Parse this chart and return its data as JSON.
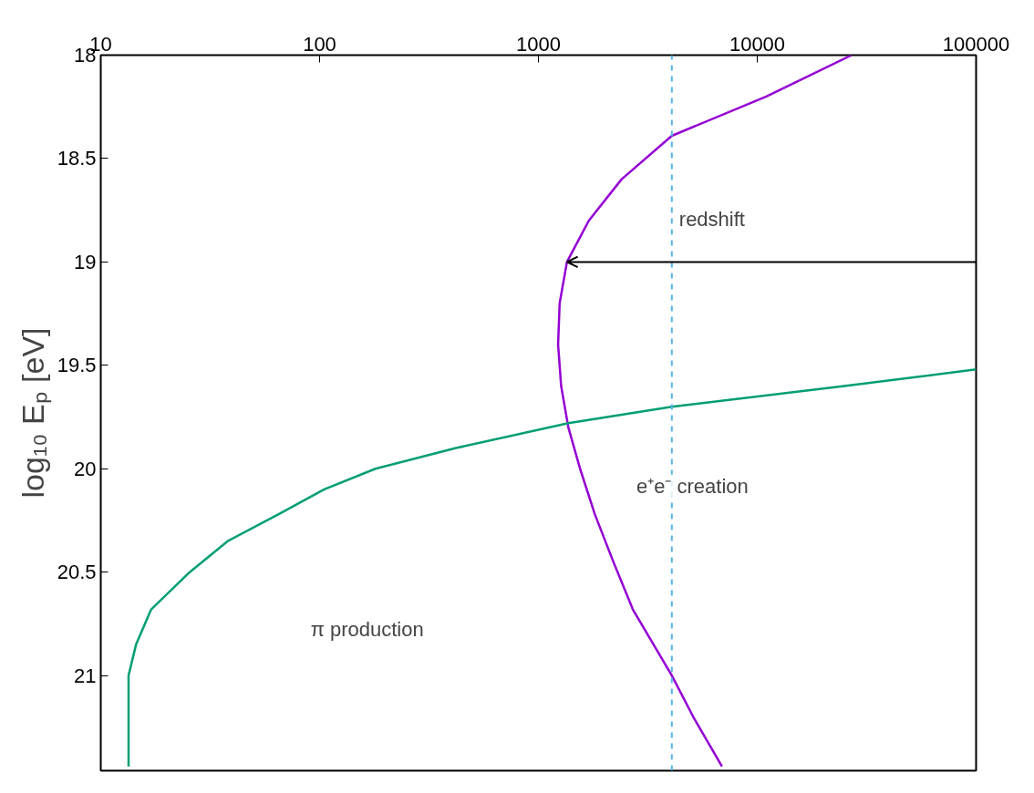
{
  "chart_data": {
    "type": "line",
    "ylabel": "log₁₀ Eₚ [eV]",
    "ylim": [
      21.46,
      18
    ],
    "yticks": [
      18,
      18.5,
      19,
      19.5,
      20,
      20.5,
      21
    ],
    "xlim": [
      10,
      100000
    ],
    "xticks": [
      10,
      100,
      1000,
      10000,
      100000
    ],
    "log": "x",
    "grid": false,
    "marker": "none",
    "line_style": "solid",
    "series": [
      {
        "color": "#9400d3",
        "x": [
          27000,
          11000,
          4070,
          2400,
          1700,
          1350,
          1250,
          1230,
          1270,
          1370,
          1550,
          1810,
          2200,
          2700,
          4070,
          5100,
          6900
        ],
        "values": [
          18,
          18.2,
          18.39,
          18.6,
          18.8,
          19,
          19.2,
          19.4,
          19.6,
          19.8,
          20,
          20.22,
          20.45,
          20.68,
          21,
          21.2,
          21.44
        ]
      },
      {
        "color": "#009e73",
        "x": [
          100000,
          25000,
          4070,
          1370,
          420,
          180,
          105,
          65,
          38,
          25.5,
          17,
          14.5,
          13.4,
          13.4,
          13.4
        ],
        "values": [
          19.52,
          19.6,
          19.7,
          19.78,
          19.9,
          20,
          20.1,
          20.22,
          20.35,
          20.5,
          20.68,
          20.85,
          21,
          21.2,
          21.44
        ]
      }
    ],
    "ref_lines": [
      {
        "axis": "x",
        "value": 4070,
        "color": "#56b4e9",
        "line_style": "dashed",
        "label": "redshift"
      },
      {
        "axis": "y",
        "value": 19,
        "color": "#000000",
        "line_style": "solid"
      }
    ],
    "annotations": [
      "e⁺e⁻ creation",
      "π production"
    ]
  }
}
